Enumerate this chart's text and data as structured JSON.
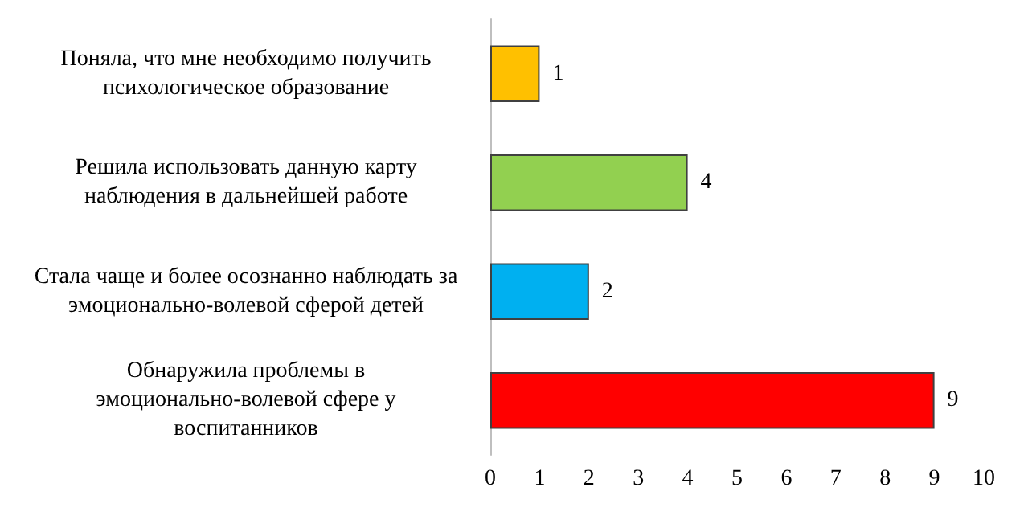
{
  "chart_data": {
    "type": "bar",
    "orientation": "horizontal",
    "categories": [
      "Поняла, что мне необходимо получить психологическое образование",
      "Решила использовать данную карту наблюдения в дальнейшей работе",
      "Стала чаще и более осознанно наблюдать за эмоционально-волевой сферой детей",
      "Обнаружила проблемы в эмоционально-волевой сфере у воспитанников"
    ],
    "values": [
      1,
      4,
      2,
      9
    ],
    "colors": [
      "#ffc000",
      "#92d050",
      "#00b0f0",
      "#ff0000"
    ],
    "xlim": [
      0,
      10
    ],
    "xticks": [
      0,
      1,
      2,
      3,
      4,
      5,
      6,
      7,
      8,
      9,
      10
    ],
    "data_labels": true,
    "grid": false
  }
}
